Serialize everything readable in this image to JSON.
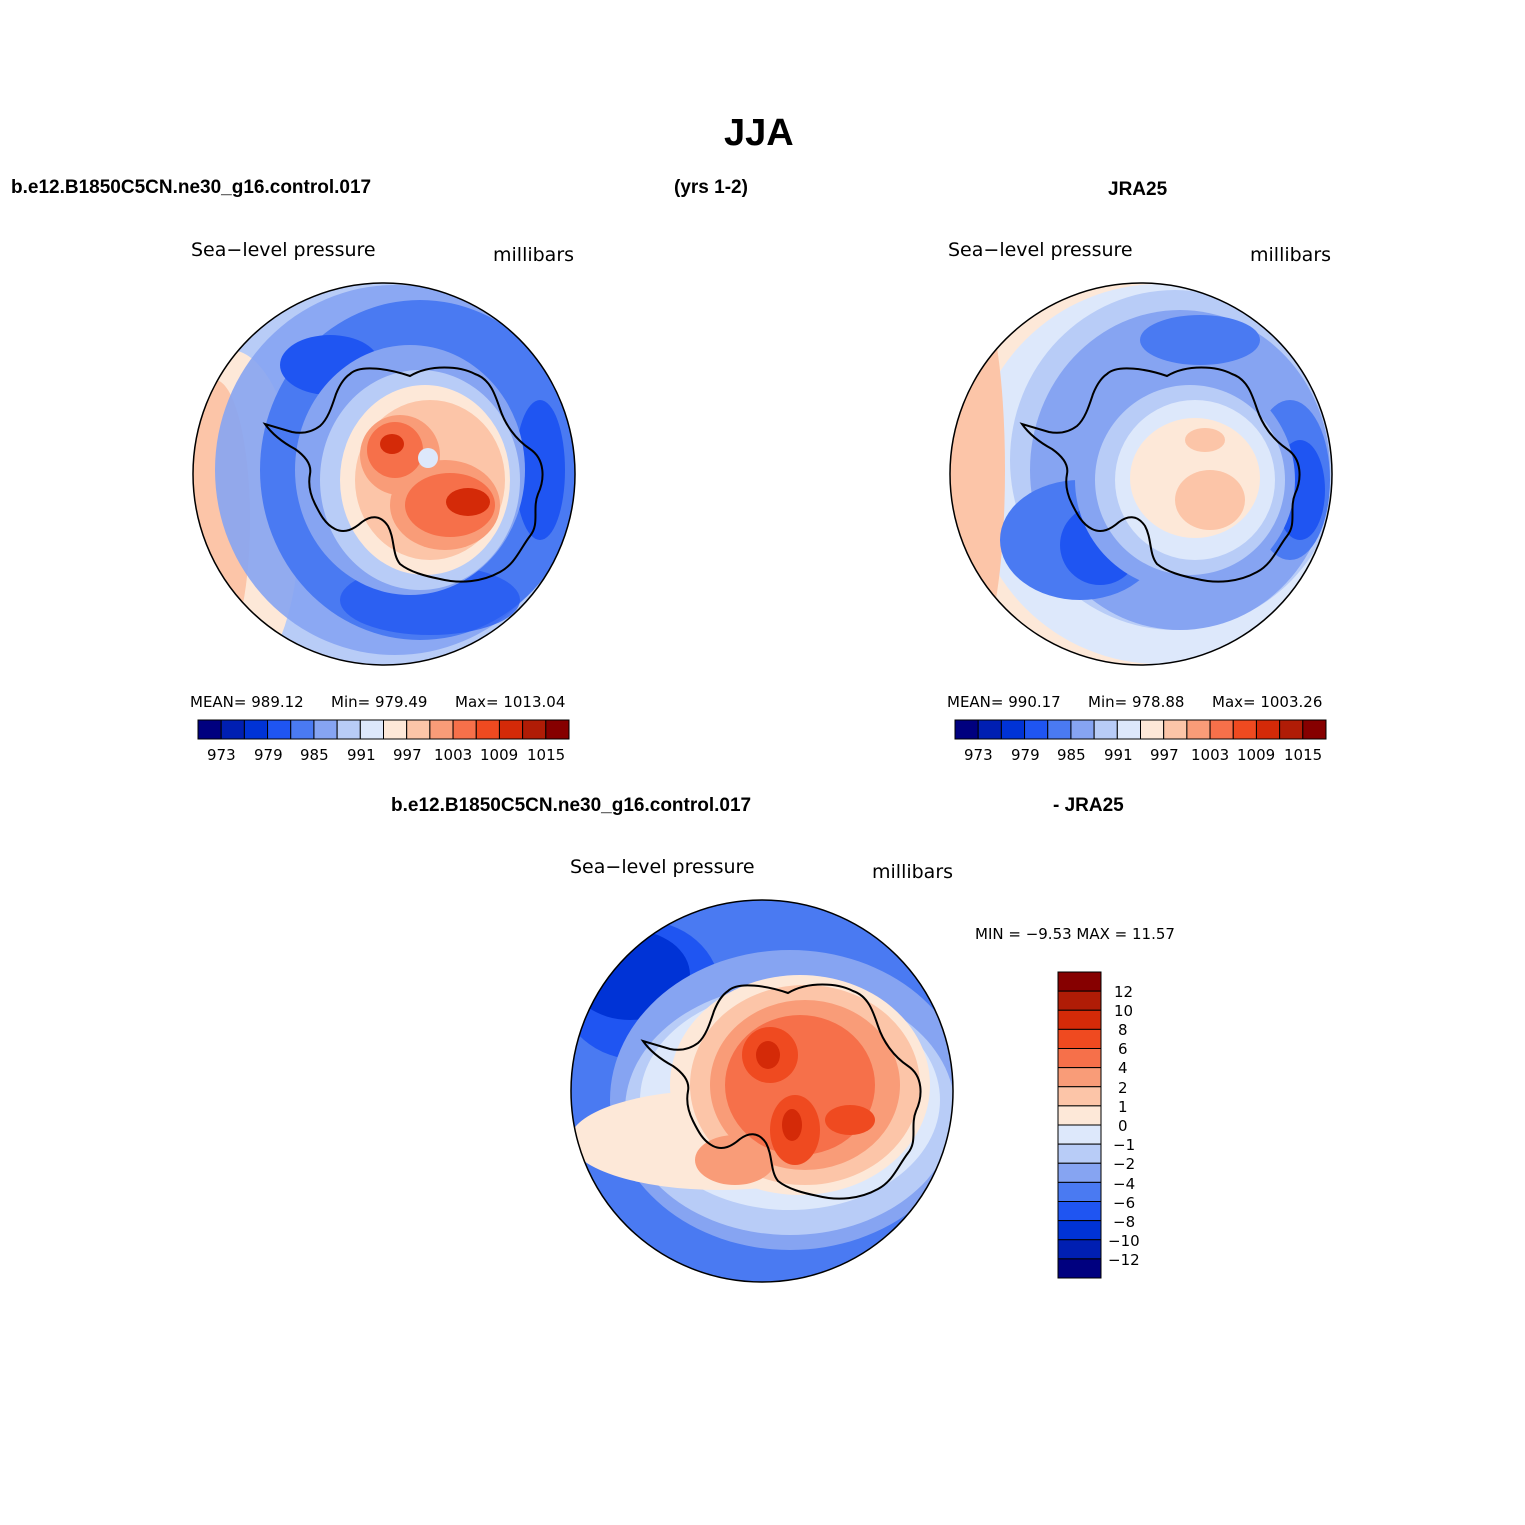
{
  "title": "JJA",
  "header": {
    "case": "b.e12.B1850C5CN.ne30_g16.control.017",
    "years": "(yrs 1-2)",
    "obs": "JRA25"
  },
  "colors": {
    "ramp": [
      "#00007f",
      "#001fb2",
      "#0033d6",
      "#1f55f2",
      "#4a7af2",
      "#86a4f2",
      "#b8ccf7",
      "#dde8fb",
      "#fde8d8",
      "#fcc5a8",
      "#f99c78",
      "#f6704a",
      "#ef4a20",
      "#d42a08",
      "#b01c06",
      "#860000"
    ],
    "coast": "#000000"
  },
  "panels": {
    "model": {
      "variable": "Sea−level pressure",
      "units": "millibars",
      "mean_text": "MEAN= 989.12",
      "min_text": "Min= 979.49",
      "max_text": "Max= 1013.04",
      "colorbar_levels": [
        "973",
        "979",
        "985",
        "991",
        "997",
        "1003",
        "1009",
        "1015"
      ]
    },
    "obs": {
      "variable": "Sea−level pressure",
      "units": "millibars",
      "mean_text": "MEAN= 990.17",
      "min_text": "Min= 978.88",
      "max_text": "Max= 1003.26",
      "colorbar_levels": [
        "973",
        "979",
        "985",
        "991",
        "997",
        "1003",
        "1009",
        "1015"
      ]
    },
    "diff": {
      "case": "b.e12.B1850C5CN.ne30_g16.control.017",
      "obs": "- JRA25",
      "variable": "Sea−level pressure",
      "units": "millibars",
      "minmax_text": "MIN =  −9.53 MAX =  11.57",
      "colorbar_levels": [
        "12",
        "10",
        "8",
        "6",
        "4",
        "2",
        "1",
        "0",
        "−1",
        "−2",
        "−4",
        "−6",
        "−8",
        "−10",
        "−12"
      ]
    }
  }
}
